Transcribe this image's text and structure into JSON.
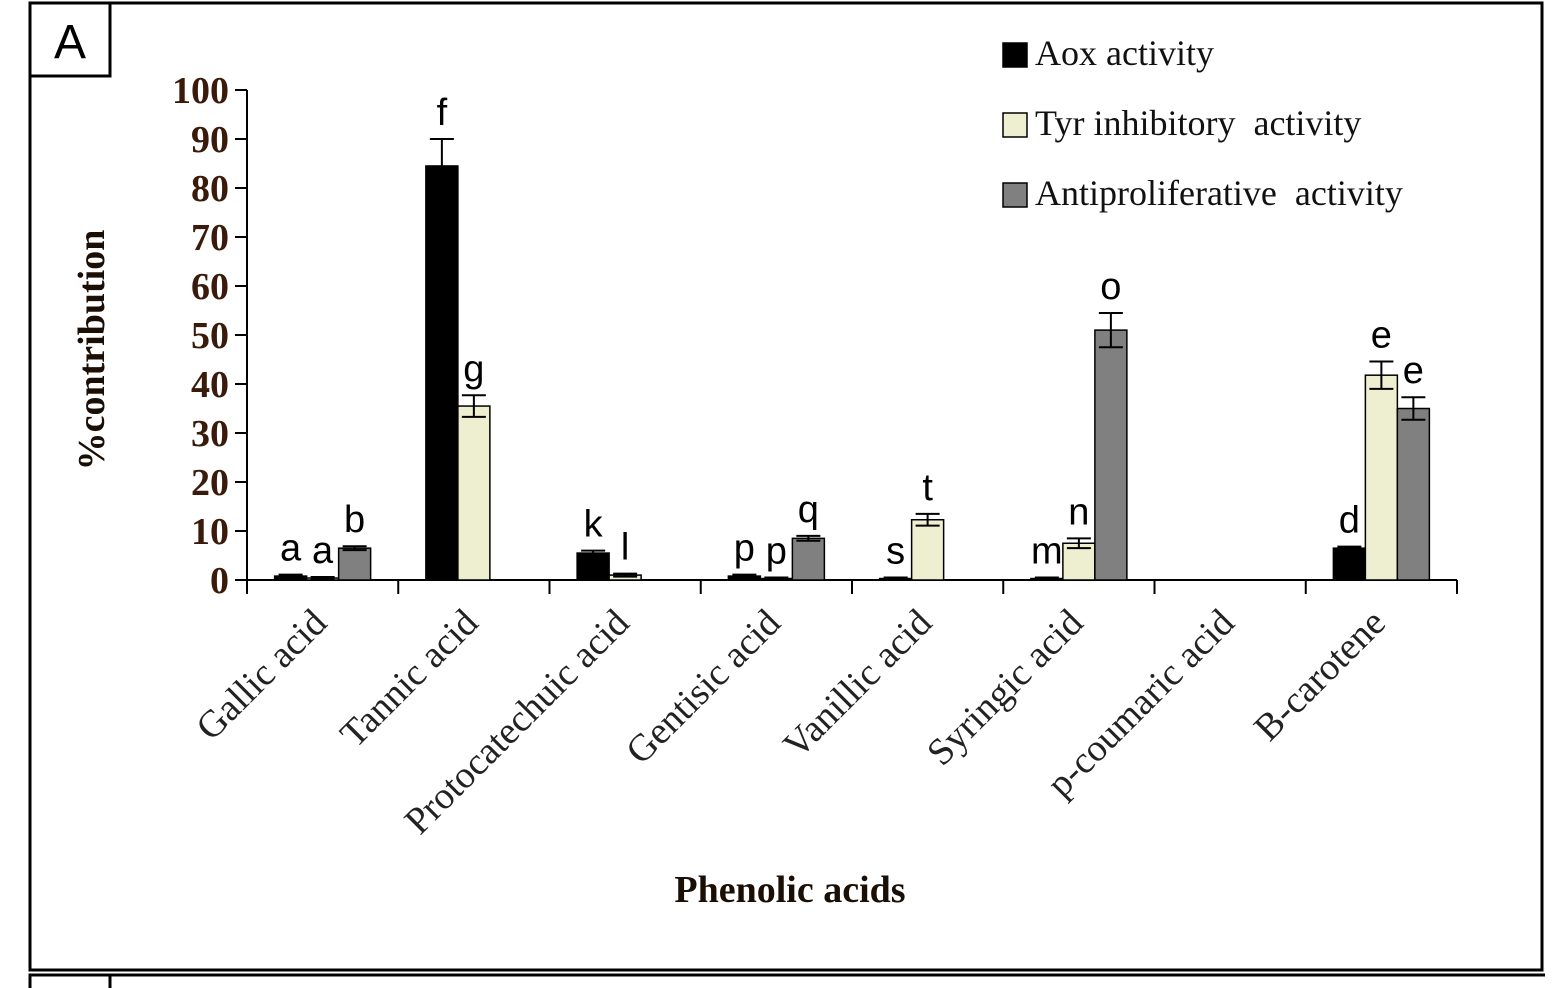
{
  "panel": {
    "label": "A"
  },
  "chart_data": {
    "type": "bar",
    "title": "",
    "xlabel": "Phenolic acids",
    "ylabel": "%contribution",
    "ylim": [
      0,
      100
    ],
    "yticks": [
      0,
      10,
      20,
      30,
      40,
      50,
      60,
      70,
      80,
      90,
      100
    ],
    "grid": false,
    "legend_position": "top-right",
    "categories": [
      "Gallic acid",
      "Tannic acid",
      "Protocatechuic acid",
      "Gentisic acid",
      "Vanillic acid",
      "Syringic acid",
      "p-coumaric acid",
      "B-carotene"
    ],
    "series": [
      {
        "name": "Aox activity",
        "color": "#000000",
        "values": [
          0.8,
          84.5,
          5.5,
          0.8,
          0.3,
          0.3,
          0,
          6.5
        ],
        "errors": [
          0.3,
          5.5,
          0.5,
          0.3,
          0.2,
          0.2,
          0,
          0.3
        ],
        "letters": [
          "a",
          "f",
          "k",
          "p",
          "s",
          "m",
          "",
          "d"
        ]
      },
      {
        "name": "Tyr inhibitory  activity",
        "color": "#eeeed0",
        "values": [
          0.4,
          35.5,
          1.0,
          0.3,
          12.3,
          7.5,
          0,
          41.8
        ],
        "errors": [
          0.2,
          2.2,
          0.3,
          0.2,
          1.2,
          1.0,
          0,
          2.8
        ],
        "letters": [
          "a",
          "g",
          "l",
          "p",
          "t",
          "n",
          "",
          "e"
        ]
      },
      {
        "name": "Antiproliferative  activity",
        "color": "#808080",
        "values": [
          6.5,
          0,
          0,
          8.5,
          0,
          51.0,
          0,
          35.0
        ],
        "errors": [
          0.4,
          0,
          0,
          0.5,
          0,
          3.5,
          0,
          2.3
        ],
        "letters": [
          "b",
          "",
          "",
          "q",
          "",
          "o",
          "",
          "e"
        ]
      }
    ]
  }
}
